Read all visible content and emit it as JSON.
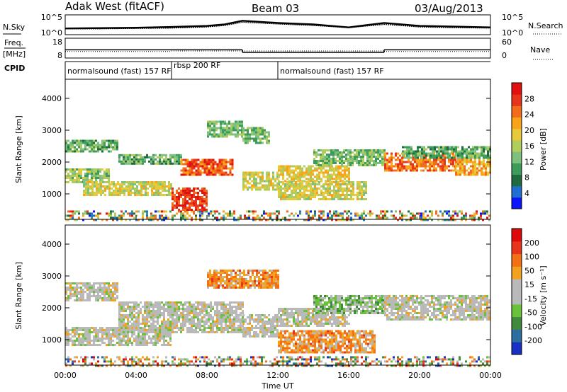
{
  "header": {
    "station": "Adak West (fitACF)",
    "beam": "Beam 03",
    "date": "03/Aug/2013"
  },
  "colors": {
    "line": "#000000",
    "empty": "#ffffff"
  },
  "chart_data": [
    {
      "type": "line",
      "name": "noise-panel",
      "left_label": "N.Sky",
      "right_label": "N.Search",
      "left_ticks": [
        "10^5",
        "10^0"
      ],
      "right_ticks": [
        "10^5",
        "10^0"
      ],
      "x": [
        0,
        2,
        4,
        6,
        8,
        9,
        10,
        12,
        14,
        16,
        18,
        20,
        22,
        24
      ],
      "series": [
        {
          "values": [
            1.5,
            1.6,
            1.7,
            1.9,
            2.2,
            2.6,
            3.6,
            3.0,
            2.6,
            1.8,
            3.0,
            2.2,
            2.0,
            1.8
          ]
        },
        {
          "values": [
            1.4,
            1.4,
            1.5,
            1.6,
            1.9,
            2.3,
            3.2,
            2.7,
            2.3,
            1.7,
            2.6,
            1.9,
            1.7,
            1.6
          ]
        }
      ]
    },
    {
      "type": "line",
      "name": "frequency-nave-panel",
      "left_label_top": "Freq.",
      "left_label_unit": "[MHz]",
      "right_label": "Nave",
      "left_ticks": [
        "18",
        "8"
      ],
      "right_ticks": [
        "60",
        "0"
      ],
      "freq_steps": [
        [
          0,
          6,
          12.0
        ],
        [
          6,
          10,
          12.0
        ],
        [
          10,
          12,
          10.5
        ],
        [
          12,
          18,
          10.5
        ],
        [
          18,
          24,
          12.0
        ]
      ],
      "nave_steps": [
        [
          0,
          6,
          18
        ],
        [
          6,
          10,
          20
        ],
        [
          10,
          18,
          20
        ],
        [
          18,
          24,
          18
        ]
      ]
    },
    {
      "type": "table",
      "name": "cpid-bar",
      "label": "CPID",
      "segments": [
        {
          "start": 0,
          "end": 6,
          "label": "normalsound (fast) 157 RF"
        },
        {
          "start": 6,
          "end": 12,
          "label": "rbsp 200 RF"
        },
        {
          "start": 12,
          "end": 24,
          "label": "normalsound (fast) 157 RF"
        }
      ]
    },
    {
      "type": "heatmap",
      "name": "power",
      "ylabel": "Slant Range [km]",
      "yticks": [
        1000,
        2000,
        3000,
        4000
      ],
      "ylim": [
        200,
        4600
      ],
      "colorbar_label": "Power [dB]",
      "colorbar_ticks": [
        "4",
        "8",
        "12",
        "16",
        "20",
        "24",
        "28"
      ],
      "colorbar_colors": [
        "#0a14ff",
        "#1f6fd0",
        "#1f6a3e",
        "#3d9c5a",
        "#7ec07e",
        "#b2cc5b",
        "#e7c93a",
        "#f9a31a",
        "#f36c1a",
        "#e8341b",
        "#e0110e"
      ],
      "bands": [
        {
          "x": [
            0,
            24
          ],
          "y": [
            200,
            480
          ],
          "v": 0.3,
          "style": "speckle"
        },
        {
          "x": [
            0,
            3
          ],
          "y": [
            2300,
            2700
          ],
          "v": 0.35
        },
        {
          "x": [
            0,
            2.5
          ],
          "y": [
            1350,
            1800
          ],
          "v": 0.45
        },
        {
          "x": [
            1,
            6
          ],
          "y": [
            950,
            1400
          ],
          "v": 0.55
        },
        {
          "x": [
            3,
            6.5
          ],
          "y": [
            1950,
            2250
          ],
          "v": 0.35
        },
        {
          "x": [
            6,
            8
          ],
          "y": [
            500,
            1200
          ],
          "v": 0.9
        },
        {
          "x": [
            6.5,
            9.5
          ],
          "y": [
            1600,
            2100
          ],
          "v": 0.85
        },
        {
          "x": [
            8,
            10
          ],
          "y": [
            2800,
            3300
          ],
          "v": 0.4
        },
        {
          "x": [
            10,
            12
          ],
          "y": [
            1100,
            1700
          ],
          "v": 0.55
        },
        {
          "x": [
            12,
            16
          ],
          "y": [
            1400,
            1900
          ],
          "v": 0.6
        },
        {
          "x": [
            12,
            17
          ],
          "y": [
            800,
            1400
          ],
          "v": 0.55
        },
        {
          "x": [
            14,
            18
          ],
          "y": [
            1900,
            2400
          ],
          "v": 0.4
        },
        {
          "x": [
            10,
            11.5
          ],
          "y": [
            2600,
            3100
          ],
          "v": 0.4
        },
        {
          "x": [
            18,
            22
          ],
          "y": [
            1700,
            2300
          ],
          "v": 0.8
        },
        {
          "x": [
            22,
            24
          ],
          "y": [
            1600,
            2100
          ],
          "v": 0.7
        },
        {
          "x": [
            19,
            24
          ],
          "y": [
            2100,
            2500
          ],
          "v": 0.35
        }
      ]
    },
    {
      "type": "heatmap",
      "name": "velocity",
      "ylabel": "Slant Range [km]",
      "yticks": [
        1000,
        2000,
        3000,
        4000
      ],
      "ylim": [
        200,
        4600
      ],
      "xlabel": "Time UT",
      "xticks": [
        "00:00",
        "04:00",
        "08:00",
        "12:00",
        "16:00",
        "20:00",
        "00:00"
      ],
      "xtick_values": [
        0,
        4,
        8,
        12,
        16,
        20,
        24
      ],
      "colorbar_label": "Velocity [m s⁻¹]",
      "colorbar_ticks": [
        "200",
        "100",
        "50",
        "15",
        "-15",
        "-50",
        "-100",
        "-200"
      ],
      "colorbar_colors": [
        "#1a2fc4",
        "#2c6ea0",
        "#3f8a3c",
        "#6ac23a",
        "#b9b9b9",
        "#b9b9b9",
        "#f3a21f",
        "#f56f14",
        "#e8341b",
        "#de0a0a"
      ],
      "bands": [
        {
          "x": [
            0,
            24
          ],
          "y": [
            200,
            480
          ],
          "v": 0.5,
          "style": "speckle"
        },
        {
          "x": [
            0,
            6
          ],
          "y": [
            800,
            1400
          ],
          "v": 0.5
        },
        {
          "x": [
            0,
            3
          ],
          "y": [
            2200,
            2800
          ],
          "v": 0.5
        },
        {
          "x": [
            3,
            10
          ],
          "y": [
            1200,
            2200
          ],
          "v": 0.5
        },
        {
          "x": [
            8,
            12
          ],
          "y": [
            2600,
            3200
          ],
          "v": 0.72
        },
        {
          "x": [
            10,
            12
          ],
          "y": [
            1100,
            1800
          ],
          "v": 0.5
        },
        {
          "x": [
            12,
            16
          ],
          "y": [
            1400,
            2000
          ],
          "v": 0.5
        },
        {
          "x": [
            12,
            17.5
          ],
          "y": [
            600,
            1300
          ],
          "v": 0.7
        },
        {
          "x": [
            14,
            18
          ],
          "y": [
            1800,
            2400
          ],
          "v": 0.35
        },
        {
          "x": [
            18,
            24
          ],
          "y": [
            1600,
            2400
          ],
          "v": 0.5
        }
      ]
    }
  ]
}
